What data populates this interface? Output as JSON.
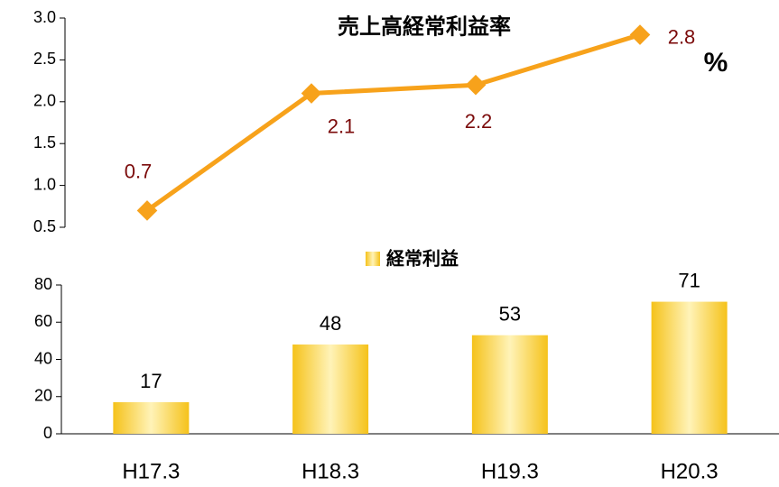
{
  "chart_data": [
    {
      "type": "line",
      "title": "売上高経常利益率",
      "unit": "%",
      "values": [
        0.7,
        2.1,
        2.2,
        2.8
      ],
      "color": "#f7a21b",
      "ylim": [
        0.5,
        3.0
      ],
      "yticks": [
        0.5,
        {
          "value": 1,
          "label": "1.0"
        },
        1.5,
        {
          "value": 2,
          "label": "2.0"
        },
        2.5,
        {
          "value": 3,
          "label": "3.0"
        }
      ]
    },
    {
      "type": "bar",
      "categories": [
        "H17.3",
        "H18.3",
        "H19.3",
        "H20.3"
      ],
      "series": [
        {
          "name": "経常利益",
          "color": "#f5c21a",
          "values": [
            17,
            48,
            53,
            71
          ]
        }
      ],
      "ylim": [
        0,
        80
      ],
      "yticks": [
        0,
        20,
        40,
        60,
        80
      ]
    }
  ]
}
